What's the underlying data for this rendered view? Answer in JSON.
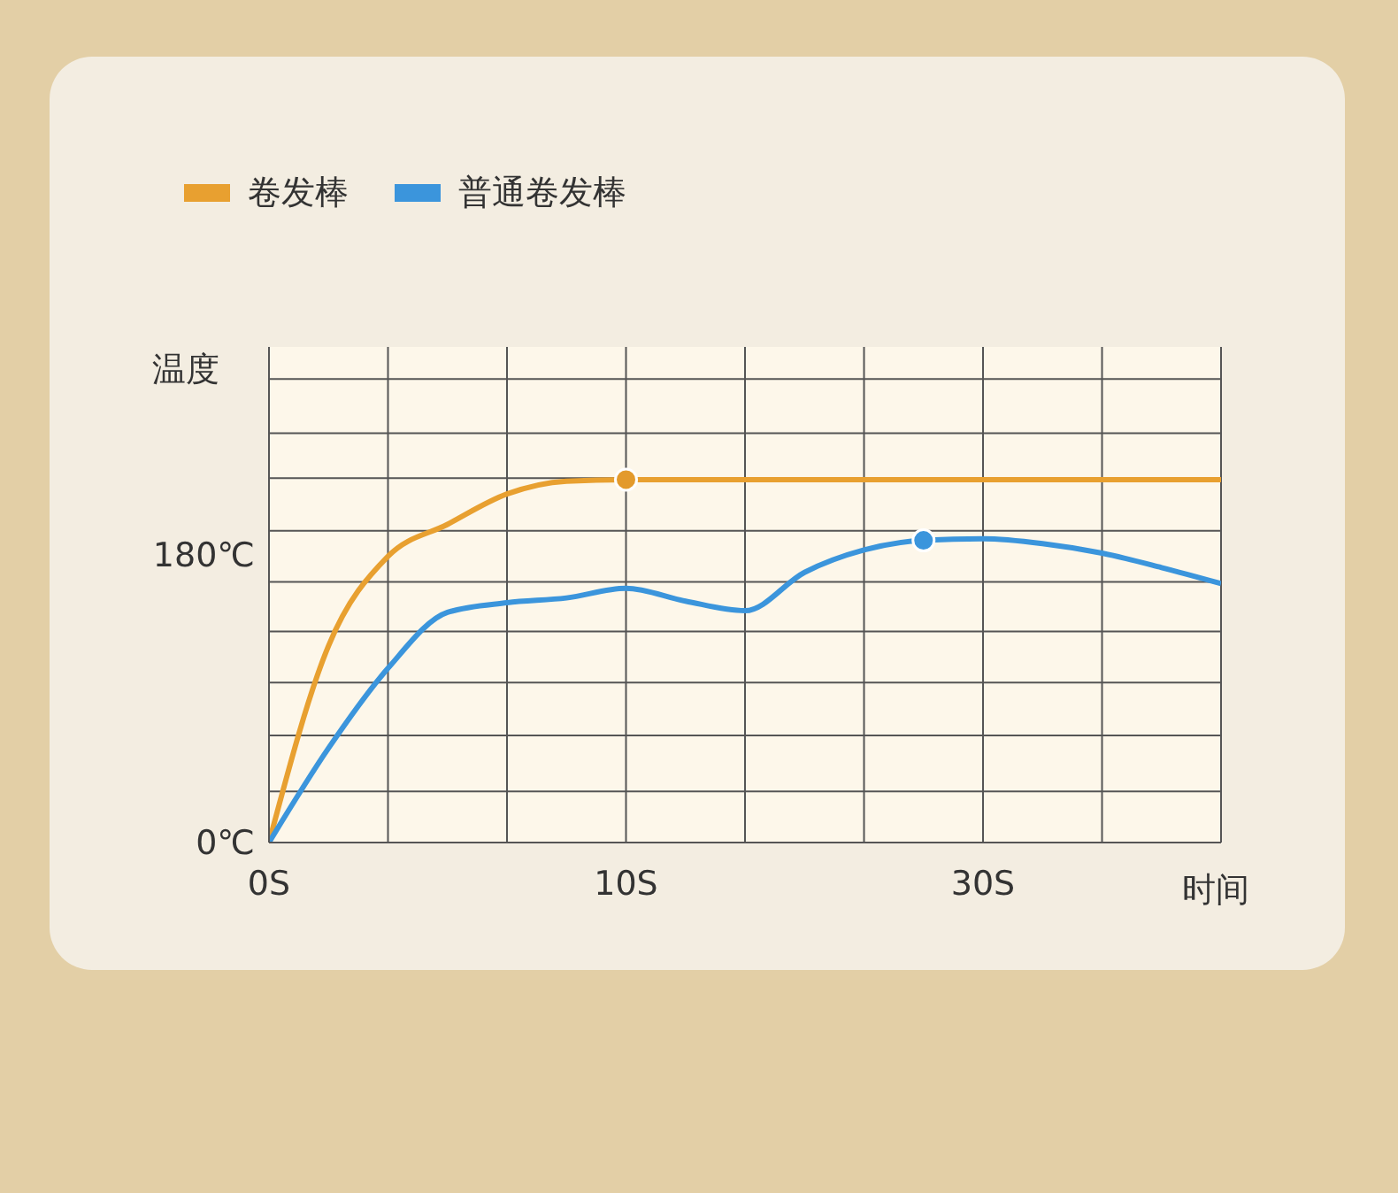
{
  "chart_data": {
    "type": "line",
    "xlabel": "时间",
    "ylabel": "温度",
    "categories": [
      "0S",
      null,
      null,
      null,
      null,
      null,
      "10S",
      null,
      null,
      null,
      null,
      null,
      "30S",
      null,
      null,
      null,
      null
    ],
    "series": [
      {
        "name": "卷发棒",
        "color": "#e8a030",
        "values": [
          0,
          123,
          179,
          199,
          218,
          226,
          227,
          227,
          227,
          227,
          227,
          227,
          227,
          227,
          227,
          227,
          227
        ]
      },
      {
        "name": "普通卷发棒",
        "color": "#3b95dc",
        "values": [
          0,
          59,
          109,
          144,
          150,
          153,
          159,
          151,
          145,
          169,
          183,
          189,
          190,
          187,
          181,
          172,
          162
        ]
      },
      {
        "type": "scatter",
        "color": "#e39a2c",
        "values": [
          null,
          null,
          null,
          null,
          null,
          null,
          227,
          null,
          null,
          null,
          null,
          null,
          null,
          null,
          null,
          null,
          null
        ]
      },
      {
        "type": "scatter",
        "color": "#3b95dc",
        "values": [
          null,
          null,
          null,
          null,
          null,
          null,
          null,
          null,
          null,
          null,
          null,
          189,
          null,
          null,
          null,
          null,
          null
        ]
      }
    ],
    "ylim": [
      0,
      310
    ],
    "yticks": [
      {
        "value": 0,
        "label": "0℃"
      },
      {
        "value": 32,
        "label": null
      },
      {
        "value": 67,
        "label": null
      },
      {
        "value": 100,
        "label": null
      },
      {
        "value": 132,
        "label": null
      },
      {
        "value": 163,
        "label": null
      },
      {
        "value": 180,
        "label": "180℃"
      },
      {
        "value": 195,
        "label": null
      },
      {
        "value": 228,
        "label": null
      },
      {
        "value": 256,
        "label": null
      },
      {
        "value": 290,
        "label": null
      }
    ],
    "grid": true,
    "legend": "top left"
  }
}
